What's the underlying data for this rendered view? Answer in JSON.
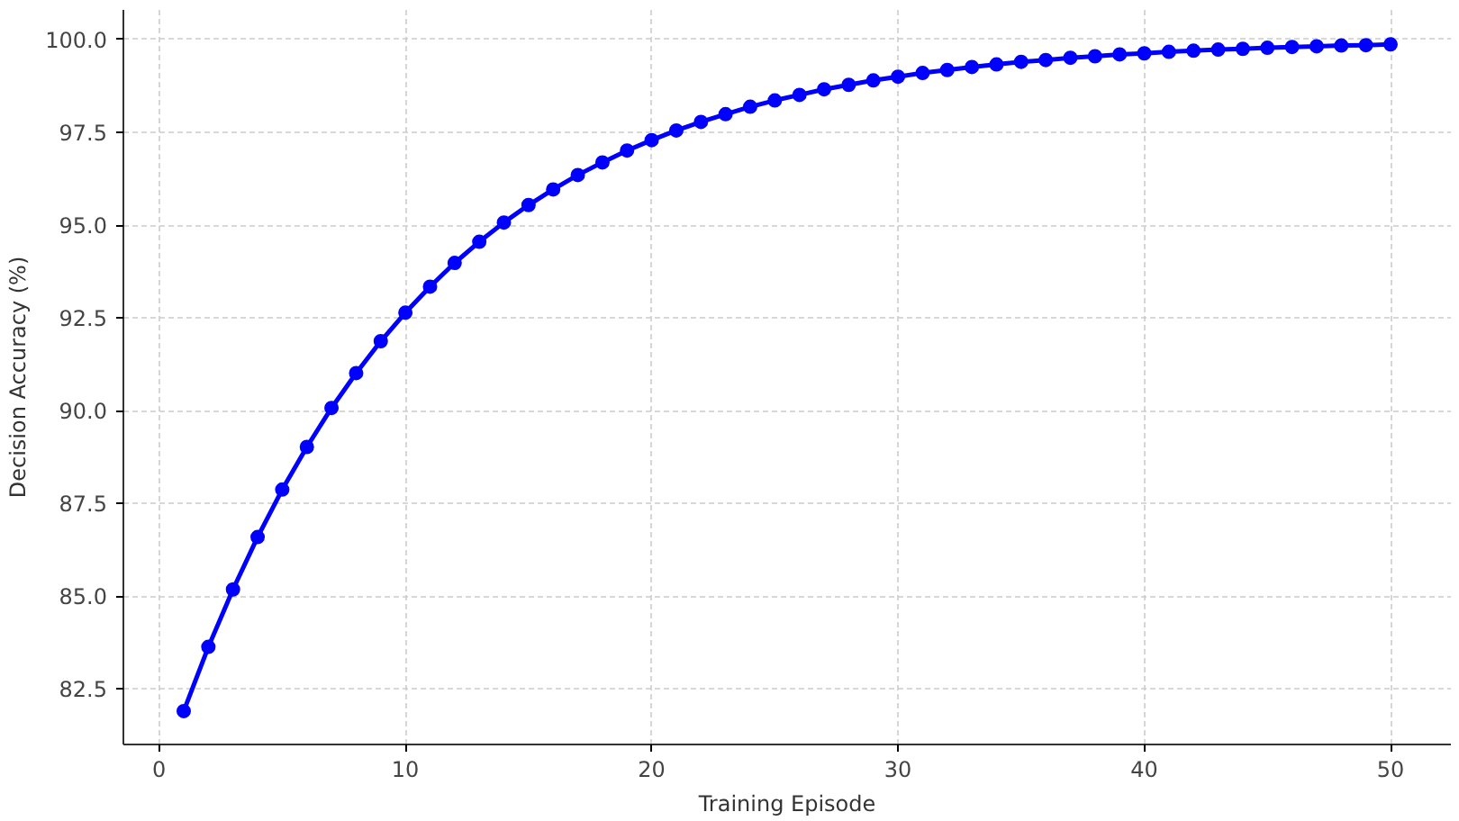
{
  "chart_data": {
    "type": "line",
    "xlabel": "Training Episode",
    "ylabel": "Decision Accuracy (%)",
    "x": [
      1,
      2,
      3,
      4,
      5,
      6,
      7,
      8,
      9,
      10,
      11,
      12,
      13,
      14,
      15,
      16,
      17,
      18,
      19,
      20,
      21,
      22,
      23,
      24,
      25,
      26,
      27,
      28,
      29,
      30,
      31,
      32,
      33,
      34,
      35,
      36,
      37,
      38,
      39,
      40,
      41,
      42,
      43,
      44,
      45,
      46,
      47,
      48,
      49,
      50
    ],
    "series": [
      {
        "color": "#0000ff",
        "values": [
          81.9,
          83.63,
          85.18,
          86.59,
          87.87,
          89.02,
          90.07,
          91.01,
          91.87,
          92.64,
          93.34,
          93.98,
          94.55,
          95.07,
          95.54,
          95.96,
          96.35,
          96.69,
          97.01,
          97.29,
          97.55,
          97.78,
          97.99,
          98.19,
          98.36,
          98.51,
          98.66,
          98.78,
          98.9,
          99.0,
          99.1,
          99.18,
          99.26,
          99.33,
          99.4,
          99.45,
          99.51,
          99.55,
          99.6,
          99.63,
          99.67,
          99.7,
          99.73,
          99.75,
          99.78,
          99.8,
          99.82,
          99.84,
          99.85,
          99.87
        ]
      }
    ],
    "xlim": [
      -1.45,
      52.45
    ],
    "ylim": [
      81.0,
      100.8
    ],
    "xticks": [
      0,
      10,
      20,
      30,
      40,
      50
    ],
    "yticks": [
      {
        "value": 82.5,
        "label": "82.5"
      },
      {
        "value": 85,
        "label": "85.0"
      },
      {
        "value": 87.5,
        "label": "87.5"
      },
      {
        "value": 90,
        "label": "90.0"
      },
      {
        "value": 92.5,
        "label": "92.5"
      },
      {
        "value": 95,
        "label": "95.0"
      },
      {
        "value": 97.5,
        "label": "97.5"
      },
      {
        "value": 100,
        "label": "100.0"
      }
    ],
    "grid": true,
    "marker": "circle",
    "line_style": "solid"
  }
}
